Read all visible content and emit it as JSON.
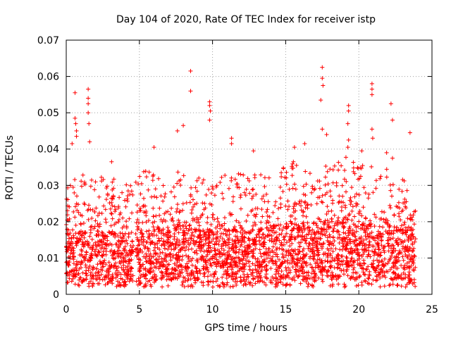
{
  "chart_data": {
    "type": "scatter",
    "title": "Day 104 of 2020, Rate Of TEC Index for receiver istp",
    "xlabel": "GPS time / hours",
    "ylabel": "ROTI / TECUs",
    "xlim": [
      0,
      25
    ],
    "ylim": [
      0,
      0.07
    ],
    "xticks": [
      0,
      5,
      10,
      15,
      20,
      25
    ],
    "xtick_labels": [
      "0",
      "5",
      "10",
      "15",
      "20",
      "25"
    ],
    "yticks": [
      0,
      0.01,
      0.02,
      0.03,
      0.04,
      0.05,
      0.06,
      0.07
    ],
    "ytick_labels": [
      "0",
      "0.01",
      "0.02",
      "0.03",
      "0.04",
      "0.05",
      "0.06",
      "0.07"
    ],
    "grid": true,
    "marker": "plus",
    "color": "#ff0000",
    "series": [
      {
        "name": "ROTI",
        "density_profile": [
          {
            "t": 0.0,
            "p50": 0.012,
            "p90": 0.026,
            "max": 0.032
          },
          {
            "t": 1.0,
            "p50": 0.012,
            "p90": 0.027,
            "max": 0.034
          },
          {
            "t": 2.0,
            "p50": 0.011,
            "p90": 0.024,
            "max": 0.032
          },
          {
            "t": 3.0,
            "p50": 0.012,
            "p90": 0.024,
            "max": 0.033
          },
          {
            "t": 4.0,
            "p50": 0.011,
            "p90": 0.022,
            "max": 0.031
          },
          {
            "t": 5.0,
            "p50": 0.012,
            "p90": 0.025,
            "max": 0.034
          },
          {
            "t": 6.0,
            "p50": 0.012,
            "p90": 0.024,
            "max": 0.034
          },
          {
            "t": 7.0,
            "p50": 0.012,
            "p90": 0.024,
            "max": 0.033
          },
          {
            "t": 8.0,
            "p50": 0.013,
            "p90": 0.026,
            "max": 0.035
          },
          {
            "t": 9.0,
            "p50": 0.012,
            "p90": 0.024,
            "max": 0.033
          },
          {
            "t": 10.0,
            "p50": 0.012,
            "p90": 0.022,
            "max": 0.031
          },
          {
            "t": 11.0,
            "p50": 0.012,
            "p90": 0.023,
            "max": 0.034
          },
          {
            "t": 12.0,
            "p50": 0.012,
            "p90": 0.023,
            "max": 0.033
          },
          {
            "t": 13.0,
            "p50": 0.012,
            "p90": 0.024,
            "max": 0.033
          },
          {
            "t": 14.0,
            "p50": 0.013,
            "p90": 0.025,
            "max": 0.034
          },
          {
            "t": 15.0,
            "p50": 0.013,
            "p90": 0.026,
            "max": 0.035
          },
          {
            "t": 16.0,
            "p50": 0.013,
            "p90": 0.027,
            "max": 0.038
          },
          {
            "t": 17.0,
            "p50": 0.013,
            "p90": 0.026,
            "max": 0.036
          },
          {
            "t": 18.0,
            "p50": 0.014,
            "p90": 0.027,
            "max": 0.036
          },
          {
            "t": 19.0,
            "p50": 0.014,
            "p90": 0.028,
            "max": 0.038
          },
          {
            "t": 20.0,
            "p50": 0.013,
            "p90": 0.026,
            "max": 0.036
          },
          {
            "t": 21.0,
            "p50": 0.013,
            "p90": 0.025,
            "max": 0.035
          },
          {
            "t": 22.0,
            "p50": 0.013,
            "p90": 0.025,
            "max": 0.035
          },
          {
            "t": 23.0,
            "p50": 0.012,
            "p90": 0.024,
            "max": 0.032
          },
          {
            "t": 23.9,
            "p50": 0.012,
            "p90": 0.023,
            "max": 0.029
          }
        ],
        "gaps_hours": [
          [
            4.6,
            4.75
          ]
        ],
        "notable_points": [
          {
            "x": 0.4,
            "y": 0.0415
          },
          {
            "x": 0.6,
            "y": 0.0555
          },
          {
            "x": 0.6,
            "y": 0.0485
          },
          {
            "x": 0.65,
            "y": 0.047
          },
          {
            "x": 0.7,
            "y": 0.045
          },
          {
            "x": 0.7,
            "y": 0.0435
          },
          {
            "x": 1.5,
            "y": 0.0565
          },
          {
            "x": 1.5,
            "y": 0.054
          },
          {
            "x": 1.5,
            "y": 0.0525
          },
          {
            "x": 1.5,
            "y": 0.05
          },
          {
            "x": 1.55,
            "y": 0.047
          },
          {
            "x": 1.6,
            "y": 0.042
          },
          {
            "x": 3.1,
            "y": 0.0365
          },
          {
            "x": 6.0,
            "y": 0.0405
          },
          {
            "x": 7.6,
            "y": 0.045
          },
          {
            "x": 8.0,
            "y": 0.0465
          },
          {
            "x": 8.5,
            "y": 0.0615
          },
          {
            "x": 8.5,
            "y": 0.056
          },
          {
            "x": 9.8,
            "y": 0.053
          },
          {
            "x": 9.8,
            "y": 0.052
          },
          {
            "x": 9.85,
            "y": 0.0505
          },
          {
            "x": 9.8,
            "y": 0.048
          },
          {
            "x": 11.3,
            "y": 0.043
          },
          {
            "x": 11.3,
            "y": 0.0415
          },
          {
            "x": 12.8,
            "y": 0.0395
          },
          {
            "x": 15.6,
            "y": 0.0405
          },
          {
            "x": 16.3,
            "y": 0.0415
          },
          {
            "x": 17.5,
            "y": 0.0625
          },
          {
            "x": 17.5,
            "y": 0.0595
          },
          {
            "x": 17.55,
            "y": 0.0575
          },
          {
            "x": 17.4,
            "y": 0.0535
          },
          {
            "x": 17.5,
            "y": 0.0455
          },
          {
            "x": 17.8,
            "y": 0.044
          },
          {
            "x": 19.3,
            "y": 0.052
          },
          {
            "x": 19.3,
            "y": 0.0505
          },
          {
            "x": 19.25,
            "y": 0.047
          },
          {
            "x": 19.3,
            "y": 0.0425
          },
          {
            "x": 19.25,
            "y": 0.0405
          },
          {
            "x": 20.9,
            "y": 0.058
          },
          {
            "x": 20.9,
            "y": 0.0565
          },
          {
            "x": 20.9,
            "y": 0.055
          },
          {
            "x": 20.9,
            "y": 0.0455
          },
          {
            "x": 20.95,
            "y": 0.043
          },
          {
            "x": 20.2,
            "y": 0.0395
          },
          {
            "x": 21.9,
            "y": 0.039
          },
          {
            "x": 22.2,
            "y": 0.0525
          },
          {
            "x": 22.3,
            "y": 0.048
          },
          {
            "x": 22.3,
            "y": 0.0375
          },
          {
            "x": 23.5,
            "y": 0.0445
          }
        ]
      }
    ]
  }
}
